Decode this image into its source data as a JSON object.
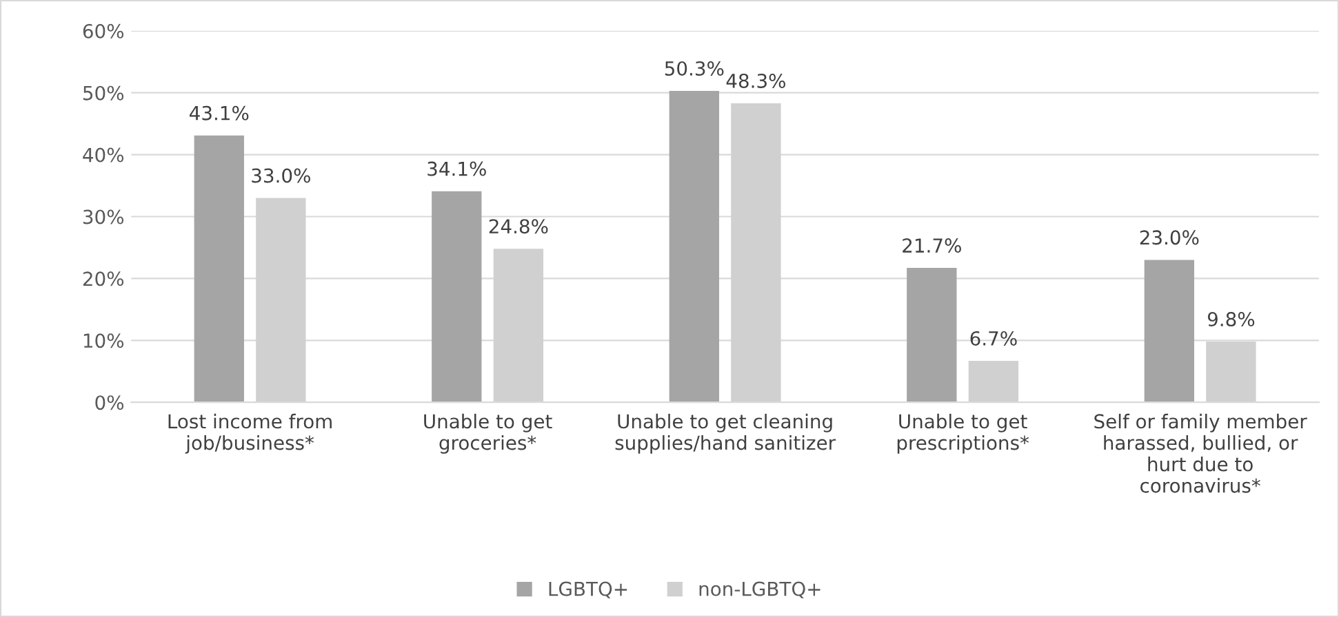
{
  "chart_data": {
    "type": "bar",
    "categories": [
      "Lost income from\njob/business*",
      "Unable to get\ngroceries*",
      "Unable to get cleaning\nsupplies/hand sanitizer",
      "Unable to get\nprescriptions*",
      "Self or family member\nharassed, bullied, or\nhurt due to\ncoronavirus*"
    ],
    "series": [
      {
        "name": "LGBTQ+",
        "color": "#a5a5a5",
        "values": [
          43.1,
          34.1,
          50.3,
          21.7,
          23.0
        ],
        "value_labels": [
          "43.1%",
          "34.1%",
          "50.3%",
          "21.7%",
          "23.0%"
        ]
      },
      {
        "name": "non-LGBTQ+",
        "color": "#d0d0d0",
        "values": [
          33.0,
          24.8,
          48.3,
          6.7,
          9.8
        ],
        "value_labels": [
          "33.0%",
          "24.8%",
          "48.3%",
          "6.7%",
          "9.8%"
        ]
      }
    ],
    "ylim": [
      0,
      60
    ],
    "yticks": [
      {
        "value": 0,
        "label": "0%"
      },
      {
        "value": 10,
        "label": "10%"
      },
      {
        "value": 20,
        "label": "20%"
      },
      {
        "value": 30,
        "label": "30%"
      },
      {
        "value": 40,
        "label": "40%"
      },
      {
        "value": 50,
        "label": "50%"
      },
      {
        "value": 60,
        "label": "60%"
      }
    ],
    "grid": "y",
    "legend": "bottom"
  }
}
